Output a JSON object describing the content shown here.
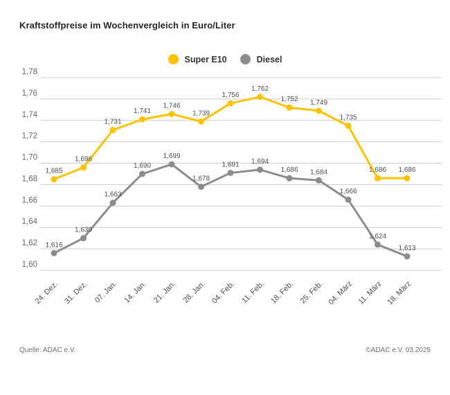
{
  "header": {
    "title": "Kraftstoffpreise im Wochenvergleich in Euro/Liter"
  },
  "footer": {
    "source_left": "Quelle: ADAC e.V.",
    "source_right": "©ADAC e.V. 03.2025"
  },
  "colors": {
    "super_e10": "#FDC300",
    "diesel": "#8C8C8C",
    "grid": "#CCCCCC",
    "axis_text": "#666666",
    "value_label_text": "#4D4D4D",
    "background": "#FFFFFF"
  },
  "chart_data": {
    "type": "line",
    "title": "Kraftstoffpreise im Wochenvergleich in Euro/Liter",
    "xlabel": "",
    "ylabel": "",
    "grid": "horizontal",
    "legend_position": "top-center",
    "ylim": [
      1.6,
      1.78
    ],
    "ytick_step": 0.02,
    "ytick_labels": [
      "1,60",
      "1,62",
      "1,64",
      "1,66",
      "1,68",
      "1,70",
      "1,72",
      "1,74",
      "1,76",
      "1,78"
    ],
    "categories": [
      "24. Dez.",
      "31. Dez.",
      "07. Jan.",
      "14. Jan.",
      "21. Jan.",
      "28. Jan.",
      "04. Feb.",
      "11. Feb.",
      "18. Feb.",
      "25. Feb.",
      "04. März",
      "11. März",
      "18. März"
    ],
    "series": [
      {
        "name": "Super E10",
        "color": "#FDC300",
        "values": [
          1.685,
          1.696,
          1.731,
          1.741,
          1.746,
          1.739,
          1.756,
          1.762,
          1.752,
          1.749,
          1.735,
          1.686,
          1.686
        ],
        "labels": [
          "1,685",
          "1,696",
          "1,731",
          "1,741",
          "1,746",
          "1,739",
          "1,756",
          "1,762",
          "1,752",
          "1,749",
          "1,735",
          "1,686",
          "1,686"
        ]
      },
      {
        "name": "Diesel",
        "color": "#8C8C8C",
        "values": [
          1.616,
          1.63,
          1.663,
          1.69,
          1.699,
          1.678,
          1.691,
          1.694,
          1.686,
          1.684,
          1.666,
          1.624,
          1.613
        ],
        "labels": [
          "1,616",
          "1,630",
          "1,663",
          "1,690",
          "1,699",
          "1,678",
          "1,691",
          "1,694",
          "1,686",
          "1,684",
          "1,666",
          "1,624",
          "1,613"
        ]
      }
    ]
  }
}
